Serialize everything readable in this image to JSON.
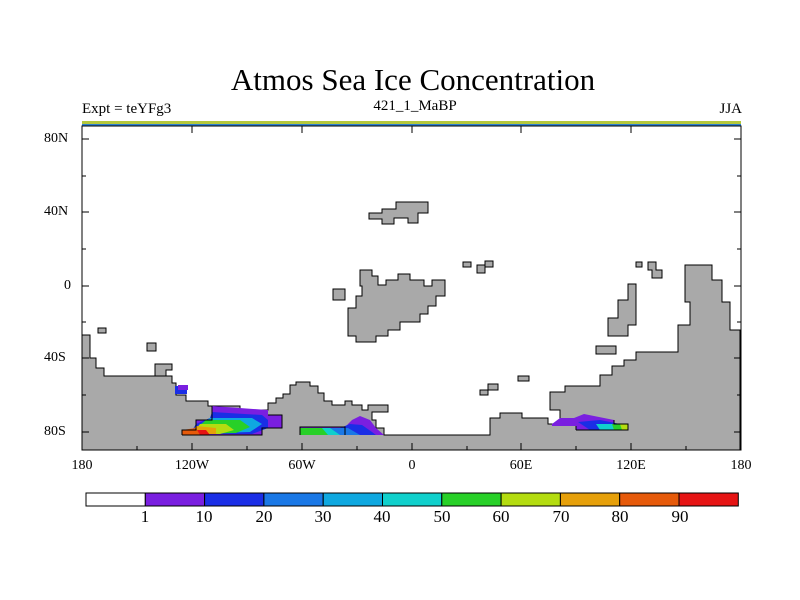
{
  "title": "Atmos Sea Ice Concentration",
  "subtitle": {
    "left": "Expt = teYFg3",
    "center": "421_1_MaBP",
    "right": "JJA"
  },
  "lat_ticks": [
    "80N",
    "40N",
    "0",
    "40S",
    "80S"
  ],
  "lon_ticks": [
    "180",
    "120W",
    "60W",
    "0",
    "60E",
    "120E",
    "180"
  ],
  "colorbar": {
    "labels": [
      "1",
      "10",
      "20",
      "30",
      "40",
      "50",
      "60",
      "70",
      "80",
      "90"
    ],
    "colors": [
      "#ffffff",
      "#7a1fe0",
      "#1a2ee6",
      "#1a78e6",
      "#0fa8e0",
      "#10d0cc",
      "#28d028",
      "#b4dc10",
      "#e6a00a",
      "#e65a0a",
      "#e61414"
    ]
  },
  "colors": {
    "land": "#a9a9a9",
    "frame": "#000000"
  }
}
